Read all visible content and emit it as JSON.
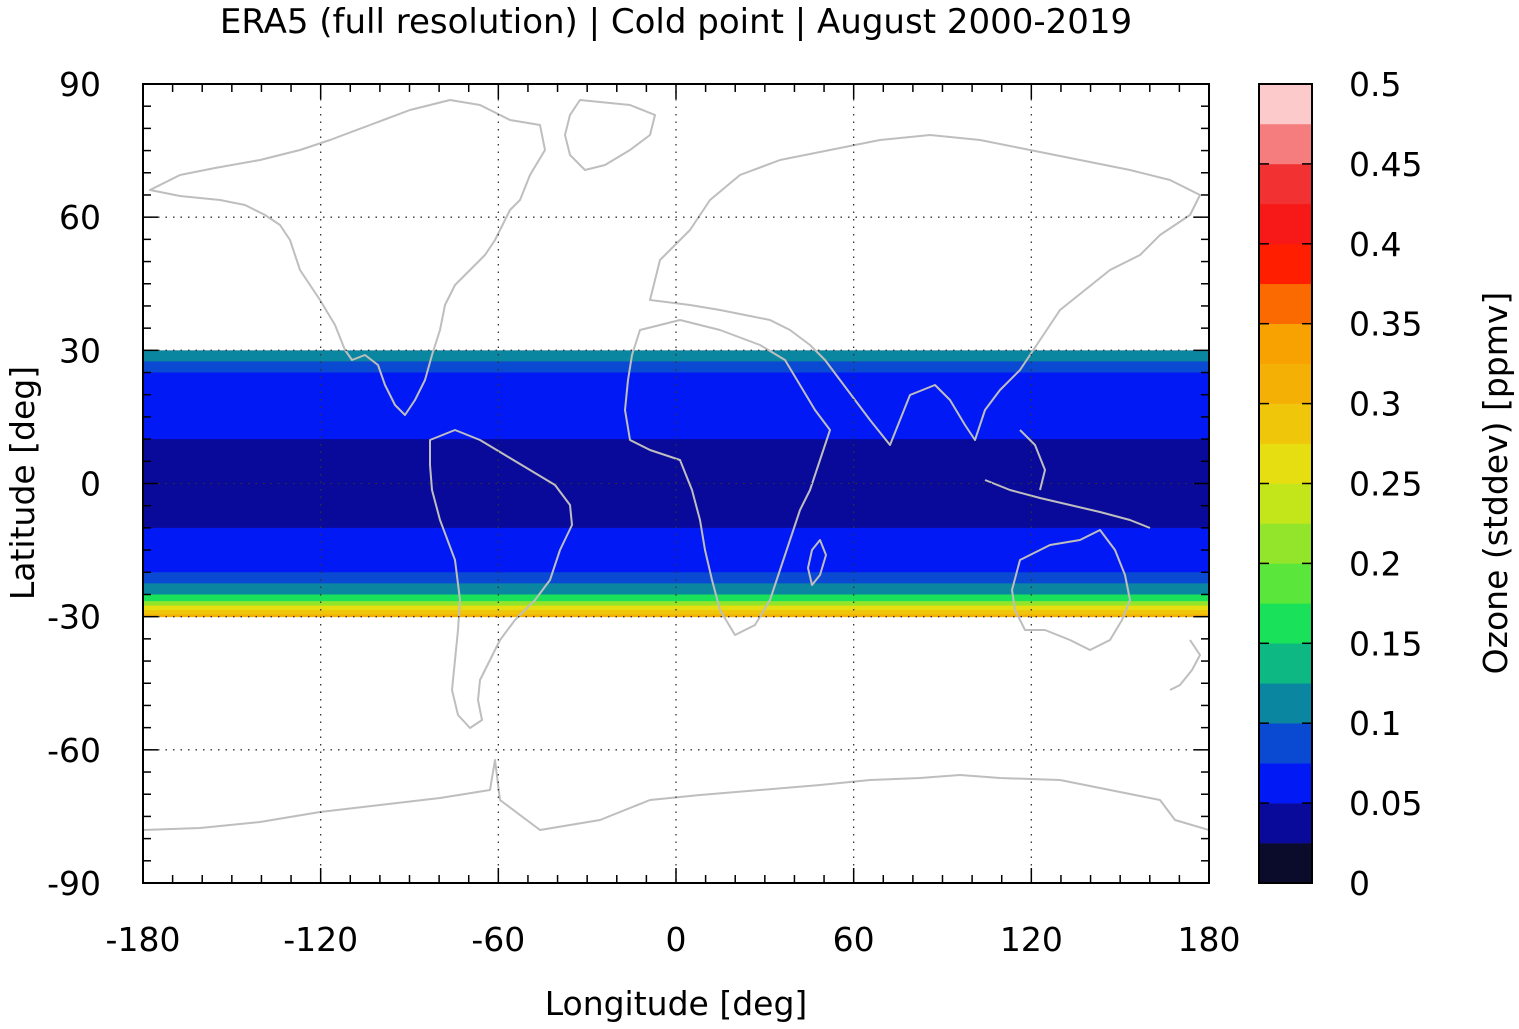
{
  "chart_data": {
    "type": "heatmap",
    "title": "ERA5 (full resolution) | Cold point | August 2000-2019",
    "xlabel": "Longitude [deg]",
    "ylabel": "Latitude [deg]",
    "colorbar_label": "Ozone (stddev) [ppmv]",
    "xlim": [
      -180,
      180
    ],
    "ylim": [
      -90,
      90
    ],
    "x_ticks": [
      -180,
      -120,
      -60,
      0,
      60,
      120,
      180
    ],
    "y_ticks": [
      -90,
      -60,
      -30,
      0,
      30,
      60,
      90
    ],
    "x_tick_labels": [
      "-180",
      "-120",
      "-60",
      "0",
      "60",
      "120",
      "180"
    ],
    "y_tick_labels": [
      "-90",
      "-60",
      "-30",
      "0",
      "30",
      "60",
      "90"
    ],
    "grid": true,
    "data_lat_range": [
      -30,
      30
    ],
    "colorbar": {
      "range": [
        0,
        0.5
      ],
      "ticks": [
        0,
        0.05,
        0.1,
        0.15,
        0.2,
        0.25,
        0.3,
        0.35,
        0.4,
        0.45,
        0.5
      ],
      "tick_labels": [
        "0",
        "0.05",
        "0.1",
        "0.15",
        "0.2",
        "0.25",
        "0.3",
        "0.35",
        "0.4",
        "0.45",
        "0.5"
      ],
      "levels": [
        {
          "from": 0.0,
          "to": 0.025,
          "color": "#0b0b2b"
        },
        {
          "from": 0.025,
          "to": 0.05,
          "color": "#0a0a9a"
        },
        {
          "from": 0.05,
          "to": 0.075,
          "color": "#0019f5"
        },
        {
          "from": 0.075,
          "to": 0.1,
          "color": "#0a4ad2"
        },
        {
          "from": 0.1,
          "to": 0.125,
          "color": "#0b86a0"
        },
        {
          "from": 0.125,
          "to": 0.15,
          "color": "#0db883"
        },
        {
          "from": 0.15,
          "to": 0.175,
          "color": "#19e15a"
        },
        {
          "from": 0.175,
          "to": 0.2,
          "color": "#5be63b"
        },
        {
          "from": 0.2,
          "to": 0.225,
          "color": "#92e52a"
        },
        {
          "from": 0.225,
          "to": 0.25,
          "color": "#c3e61a"
        },
        {
          "from": 0.25,
          "to": 0.275,
          "color": "#e6de10"
        },
        {
          "from": 0.275,
          "to": 0.3,
          "color": "#f0c60b"
        },
        {
          "from": 0.3,
          "to": 0.325,
          "color": "#f5b006"
        },
        {
          "from": 0.325,
          "to": 0.35,
          "color": "#f7a200"
        },
        {
          "from": 0.35,
          "to": 0.375,
          "color": "#fb6a00"
        },
        {
          "from": 0.375,
          "to": 0.4,
          "color": "#ff1e00"
        },
        {
          "from": 0.4,
          "to": 0.425,
          "color": "#f71818"
        },
        {
          "from": 0.425,
          "to": 0.45,
          "color": "#f23232"
        },
        {
          "from": 0.45,
          "to": 0.475,
          "color": "#f57d7d"
        },
        {
          "from": 0.475,
          "to": 0.5,
          "color": "#fccaca"
        }
      ]
    },
    "zonal_mean_profile": {
      "lat": [
        30,
        27.5,
        25,
        22.5,
        20,
        17.5,
        15,
        12.5,
        10,
        7.5,
        5,
        2.5,
        0,
        -2.5,
        -5,
        -7.5,
        -10,
        -12.5,
        -15,
        -17.5,
        -20,
        -22.5,
        -25,
        -26.5,
        -27.5,
        -28.5,
        -29.5
      ],
      "value": [
        0.11,
        0.08,
        0.06,
        0.06,
        0.06,
        0.06,
        0.05,
        0.05,
        0.04,
        0.04,
        0.04,
        0.04,
        0.04,
        0.04,
        0.04,
        0.045,
        0.05,
        0.06,
        0.06,
        0.07,
        0.09,
        0.12,
        0.16,
        0.21,
        0.25,
        0.29,
        0.32
      ]
    },
    "coastline_color": "#bebebe"
  }
}
